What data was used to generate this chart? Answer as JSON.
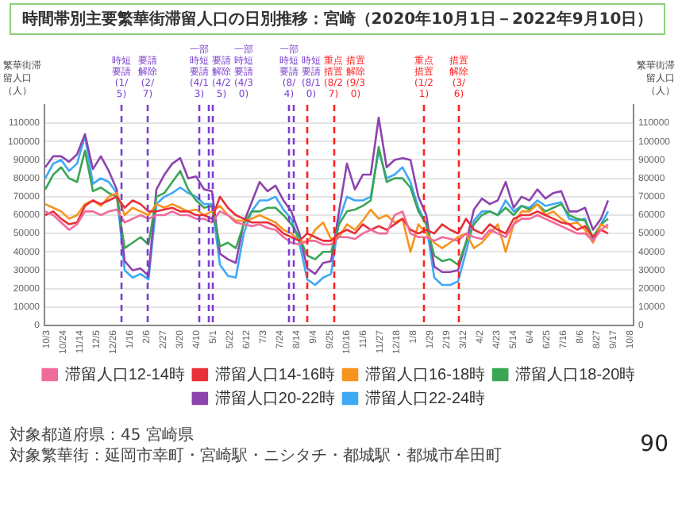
{
  "chart_data": {
    "type": "line",
    "title": "時間帯別主要繁華街滞留人口の日別推移：宮崎（2020年10月1日－2022年9月10日）",
    "ylabel": "繁華街滞留人口（人）",
    "y2label": "繁華街滞留人口（人）",
    "x": [
      "2020-10-01",
      "2020-10-11",
      "2020-10-21",
      "2020-10-31",
      "2020-11-10",
      "2020-11-20",
      "2020-11-30",
      "2020-12-10",
      "2020-12-20",
      "2020-12-30",
      "2021-01-09",
      "2021-01-19",
      "2021-01-29",
      "2021-02-08",
      "2021-02-18",
      "2021-02-28",
      "2021-03-10",
      "2021-03-20",
      "2021-03-30",
      "2021-04-09",
      "2021-04-19",
      "2021-04-29",
      "2021-05-09",
      "2021-05-19",
      "2021-05-29",
      "2021-06-08",
      "2021-06-18",
      "2021-06-28",
      "2021-07-08",
      "2021-07-18",
      "2021-07-28",
      "2021-08-07",
      "2021-08-17",
      "2021-08-27",
      "2021-09-06",
      "2021-09-16",
      "2021-09-26",
      "2021-10-06",
      "2021-10-16",
      "2021-10-26",
      "2021-11-05",
      "2021-11-15",
      "2021-11-25",
      "2021-12-05",
      "2021-12-15",
      "2021-12-25",
      "2022-01-04",
      "2022-01-14",
      "2022-01-24",
      "2022-02-03",
      "2022-02-13",
      "2022-02-23",
      "2022-03-05",
      "2022-03-15",
      "2022-03-25",
      "2022-04-04",
      "2022-04-14",
      "2022-04-24",
      "2022-05-04",
      "2022-05-14",
      "2022-05-24",
      "2022-06-03",
      "2022-06-13",
      "2022-06-23",
      "2022-07-03",
      "2022-07-13",
      "2022-07-23",
      "2022-08-02",
      "2022-08-12",
      "2022-08-22",
      "2022-09-01",
      "2022-09-10"
    ],
    "series": [
      {
        "name": "滞留人口12-14時",
        "color": "#f06b9b",
        "values": [
          62000,
          60000,
          56000,
          52000,
          55000,
          62000,
          62000,
          60000,
          62000,
          63000,
          56000,
          58000,
          60000,
          58000,
          60000,
          60000,
          62000,
          60000,
          60000,
          58000,
          58000,
          56000,
          62000,
          60000,
          56000,
          55000,
          54000,
          55000,
          53000,
          52000,
          48000,
          45000,
          44000,
          46000,
          46000,
          44000,
          44000,
          48000,
          48000,
          47000,
          50000,
          52000,
          50000,
          50000,
          60000,
          62000,
          50000,
          48000,
          48000,
          46000,
          48000,
          47000,
          46000,
          50000,
          48000,
          47000,
          52000,
          50000,
          48000,
          55000,
          58000,
          58000,
          60000,
          58000,
          56000,
          54000,
          52000,
          50000,
          50000,
          46000,
          52000,
          55000
        ]
      },
      {
        "name": "滞留人口14-16時",
        "color": "#e8303a",
        "values": [
          60000,
          62000,
          58000,
          55000,
          56000,
          65000,
          68000,
          66000,
          68000,
          70000,
          64000,
          68000,
          66000,
          62000,
          62000,
          63000,
          64000,
          62000,
          62000,
          60000,
          60000,
          58000,
          70000,
          64000,
          60000,
          58000,
          56000,
          56000,
          56000,
          54000,
          50000,
          48000,
          46000,
          50000,
          48000,
          46000,
          46000,
          50000,
          52000,
          50000,
          55000,
          52000,
          54000,
          52000,
          55000,
          58000,
          52000,
          50000,
          52000,
          50000,
          55000,
          52000,
          50000,
          58000,
          52000,
          50000,
          55000,
          52000,
          50000,
          58000,
          60000,
          60000,
          62000,
          60000,
          58000,
          56000,
          55000,
          52000,
          54000,
          48000,
          52000,
          50000
        ]
      },
      {
        "name": "滞留人口16-18時",
        "color": "#f7941d",
        "values": [
          66000,
          64000,
          62000,
          58000,
          60000,
          66000,
          68000,
          65000,
          70000,
          72000,
          60000,
          64000,
          62000,
          60000,
          66000,
          64000,
          66000,
          64000,
          62000,
          63000,
          60000,
          62000,
          65000,
          60000,
          57000,
          57000,
          58000,
          60000,
          58000,
          56000,
          52000,
          50000,
          46000,
          45000,
          52000,
          56000,
          47000,
          48000,
          55000,
          52000,
          57000,
          63000,
          58000,
          60000,
          56000,
          58000,
          40000,
          55000,
          50000,
          45000,
          42000,
          45000,
          48000,
          50000,
          42000,
          45000,
          50000,
          55000,
          40000,
          55000,
          62000,
          62000,
          66000,
          60000,
          62000,
          58000,
          55000,
          56000,
          52000,
          45000,
          55000,
          53000
        ]
      },
      {
        "name": "滞留人口18-20時",
        "color": "#3aa655",
        "values": [
          74000,
          82000,
          86000,
          80000,
          78000,
          95000,
          73000,
          75000,
          72000,
          70000,
          42000,
          45000,
          48000,
          44000,
          70000,
          72000,
          78000,
          84000,
          74000,
          68000,
          64000,
          65000,
          43000,
          45000,
          42000,
          55000,
          62000,
          62000,
          64000,
          64000,
          60000,
          55000,
          48000,
          38000,
          36000,
          40000,
          40000,
          55000,
          62000,
          63000,
          65000,
          68000,
          97000,
          78000,
          80000,
          80000,
          75000,
          62000,
          55000,
          38000,
          35000,
          36000,
          33000,
          45000,
          55000,
          60000,
          62000,
          60000,
          64000,
          60000,
          65000,
          63000,
          66000,
          62000,
          64000,
          66000,
          60000,
          58000,
          57000,
          48000,
          55000,
          58000
        ]
      },
      {
        "name": "滞留人口20-22時",
        "color": "#8e44ad",
        "values": [
          86000,
          92000,
          92000,
          89000,
          93000,
          104000,
          85000,
          92000,
          84000,
          74000,
          35000,
          30000,
          31000,
          27000,
          74000,
          82000,
          88000,
          91000,
          80000,
          81000,
          74000,
          73000,
          39000,
          36000,
          34000,
          56000,
          67000,
          78000,
          73000,
          76000,
          68000,
          62000,
          50000,
          31000,
          28000,
          34000,
          35000,
          62000,
          88000,
          74000,
          82000,
          82000,
          113000,
          86000,
          90000,
          91000,
          90000,
          70000,
          60000,
          32000,
          29000,
          29000,
          30000,
          45000,
          63000,
          69000,
          66000,
          68000,
          78000,
          64000,
          70000,
          68000,
          74000,
          69000,
          72000,
          73000,
          62000,
          62000,
          64000,
          52000,
          58000,
          68000
        ]
      },
      {
        "name": "滞留人口22-24時",
        "color": "#3fa9f5",
        "values": [
          80000,
          88000,
          90000,
          84000,
          88000,
          103000,
          77000,
          80000,
          78000,
          72000,
          30000,
          26000,
          28000,
          25000,
          66000,
          70000,
          72000,
          75000,
          72000,
          70000,
          66000,
          66000,
          33000,
          27000,
          26000,
          50000,
          62000,
          68000,
          68000,
          70000,
          63000,
          58000,
          45000,
          25000,
          22000,
          26000,
          28000,
          57000,
          70000,
          68000,
          68000,
          70000,
          95000,
          80000,
          82000,
          86000,
          78000,
          64000,
          55000,
          26000,
          22000,
          22000,
          24000,
          40000,
          57000,
          62000,
          62000,
          60000,
          68000,
          62000,
          65000,
          64000,
          68000,
          65000,
          66000,
          67000,
          58000,
          57000,
          58000,
          46000,
          55000,
          62000
        ]
      }
    ],
    "xlim": [
      "2020-09-30",
      "2022-10-12"
    ],
    "xticks": [
      {
        "value": "2020-10-03",
        "label": "10/3"
      },
      {
        "value": "2020-10-24",
        "label": "10/24"
      },
      {
        "value": "2020-11-14",
        "label": "11/14"
      },
      {
        "value": "2020-12-05",
        "label": "12/5"
      },
      {
        "value": "2020-12-26",
        "label": "12/26"
      },
      {
        "value": "2021-01-16",
        "label": "1/16"
      },
      {
        "value": "2021-02-06",
        "label": "2/6"
      },
      {
        "value": "2021-02-27",
        "label": "2/27"
      },
      {
        "value": "2021-03-20",
        "label": "3/20"
      },
      {
        "value": "2021-04-10",
        "label": "4/10"
      },
      {
        "value": "2021-05-01",
        "label": "5/1"
      },
      {
        "value": "2021-05-22",
        "label": "5/22"
      },
      {
        "value": "2021-06-12",
        "label": "6/12"
      },
      {
        "value": "2021-07-03",
        "label": "7/3"
      },
      {
        "value": "2021-07-24",
        "label": "7/24"
      },
      {
        "value": "2021-08-14",
        "label": "8/14"
      },
      {
        "value": "2021-09-04",
        "label": "9/4"
      },
      {
        "value": "2021-09-25",
        "label": "9/25"
      },
      {
        "value": "2021-10-16",
        "label": "10/16"
      },
      {
        "value": "2021-11-06",
        "label": "11/6"
      },
      {
        "value": "2021-11-27",
        "label": "11/27"
      },
      {
        "value": "2021-12-18",
        "label": "12/18"
      },
      {
        "value": "2022-01-08",
        "label": "1/8"
      },
      {
        "value": "2022-01-29",
        "label": "1/29"
      },
      {
        "value": "2022-02-19",
        "label": "2/19"
      },
      {
        "value": "2022-03-12",
        "label": "3/12"
      },
      {
        "value": "2022-04-02",
        "label": "4/2"
      },
      {
        "value": "2022-04-23",
        "label": "4/23"
      },
      {
        "value": "2022-05-14",
        "label": "5/14"
      },
      {
        "value": "2022-06-04",
        "label": "6/4"
      },
      {
        "value": "2022-06-25",
        "label": "6/25"
      },
      {
        "value": "2022-07-16",
        "label": "7/16"
      },
      {
        "value": "2022-08-06",
        "label": "8/6"
      },
      {
        "value": "2022-08-27",
        "label": "8/27"
      },
      {
        "value": "2022-09-17",
        "label": "9/17"
      },
      {
        "value": "2022-10-08",
        "label": "10/8"
      }
    ],
    "ylim": [
      0,
      120000
    ],
    "yticks": [
      0,
      10000,
      20000,
      30000,
      40000,
      50000,
      60000,
      70000,
      80000,
      90000,
      100000,
      110000
    ],
    "y2lim": [
      0,
      120000
    ],
    "y2ticks": [
      0,
      10000,
      20000,
      30000,
      40000,
      50000,
      60000,
      70000,
      80000,
      90000,
      100000,
      110000
    ],
    "grid": "y",
    "legend": "bottom",
    "marker": "none",
    "ref_lines": [
      {
        "axis": "x",
        "value": "2021-01-05",
        "label": "時短要請(1/5)",
        "color": "#7a3fd0",
        "line_style": "dashed"
      },
      {
        "axis": "x",
        "value": "2021-02-07",
        "label": "要請解除(2/7)",
        "color": "#7a3fd0",
        "line_style": "dashed"
      },
      {
        "axis": "x",
        "value": "2021-04-13",
        "label": "一部時短要請(4/13)",
        "color": "#7a3fd0",
        "line_style": "dashed"
      },
      {
        "axis": "x",
        "value": "2021-04-25",
        "label": "要請解除(4/25)",
        "color": "#7a3fd0",
        "line_style": "dashed"
      },
      {
        "axis": "x",
        "value": "2021-04-30",
        "label": "一部時短要請(4/30)",
        "color": "#7a3fd0",
        "line_style": "dashed"
      },
      {
        "axis": "x",
        "value": "2021-08-04",
        "label": "一部時短要請(8/4)",
        "color": "#7a3fd0",
        "line_style": "dashed"
      },
      {
        "axis": "x",
        "value": "2021-08-10",
        "label": "時短要請(8/10)",
        "color": "#7a3fd0",
        "line_style": "dashed"
      },
      {
        "axis": "x",
        "value": "2021-08-27",
        "label": "重点措置(8/27)",
        "color": "#ff2020",
        "line_style": "dashed"
      },
      {
        "axis": "x",
        "value": "2021-09-30",
        "label": "措置解除(9/30)",
        "color": "#ff2020",
        "line_style": "dashed"
      },
      {
        "axis": "x",
        "value": "2022-01-21",
        "label": "重点措置(1/21)",
        "color": "#ff2020",
        "line_style": "dashed"
      },
      {
        "axis": "x",
        "value": "2022-03-06",
        "label": "措置解除(3/6)",
        "color": "#ff2020",
        "line_style": "dashed"
      }
    ],
    "annotations": [
      "対象都道府県：45 宮崎県",
      "対象繁華街：延岡市幸町・宮崎駅・ニシタチ・都城駅・都城市牟田町",
      "90"
    ]
  }
}
